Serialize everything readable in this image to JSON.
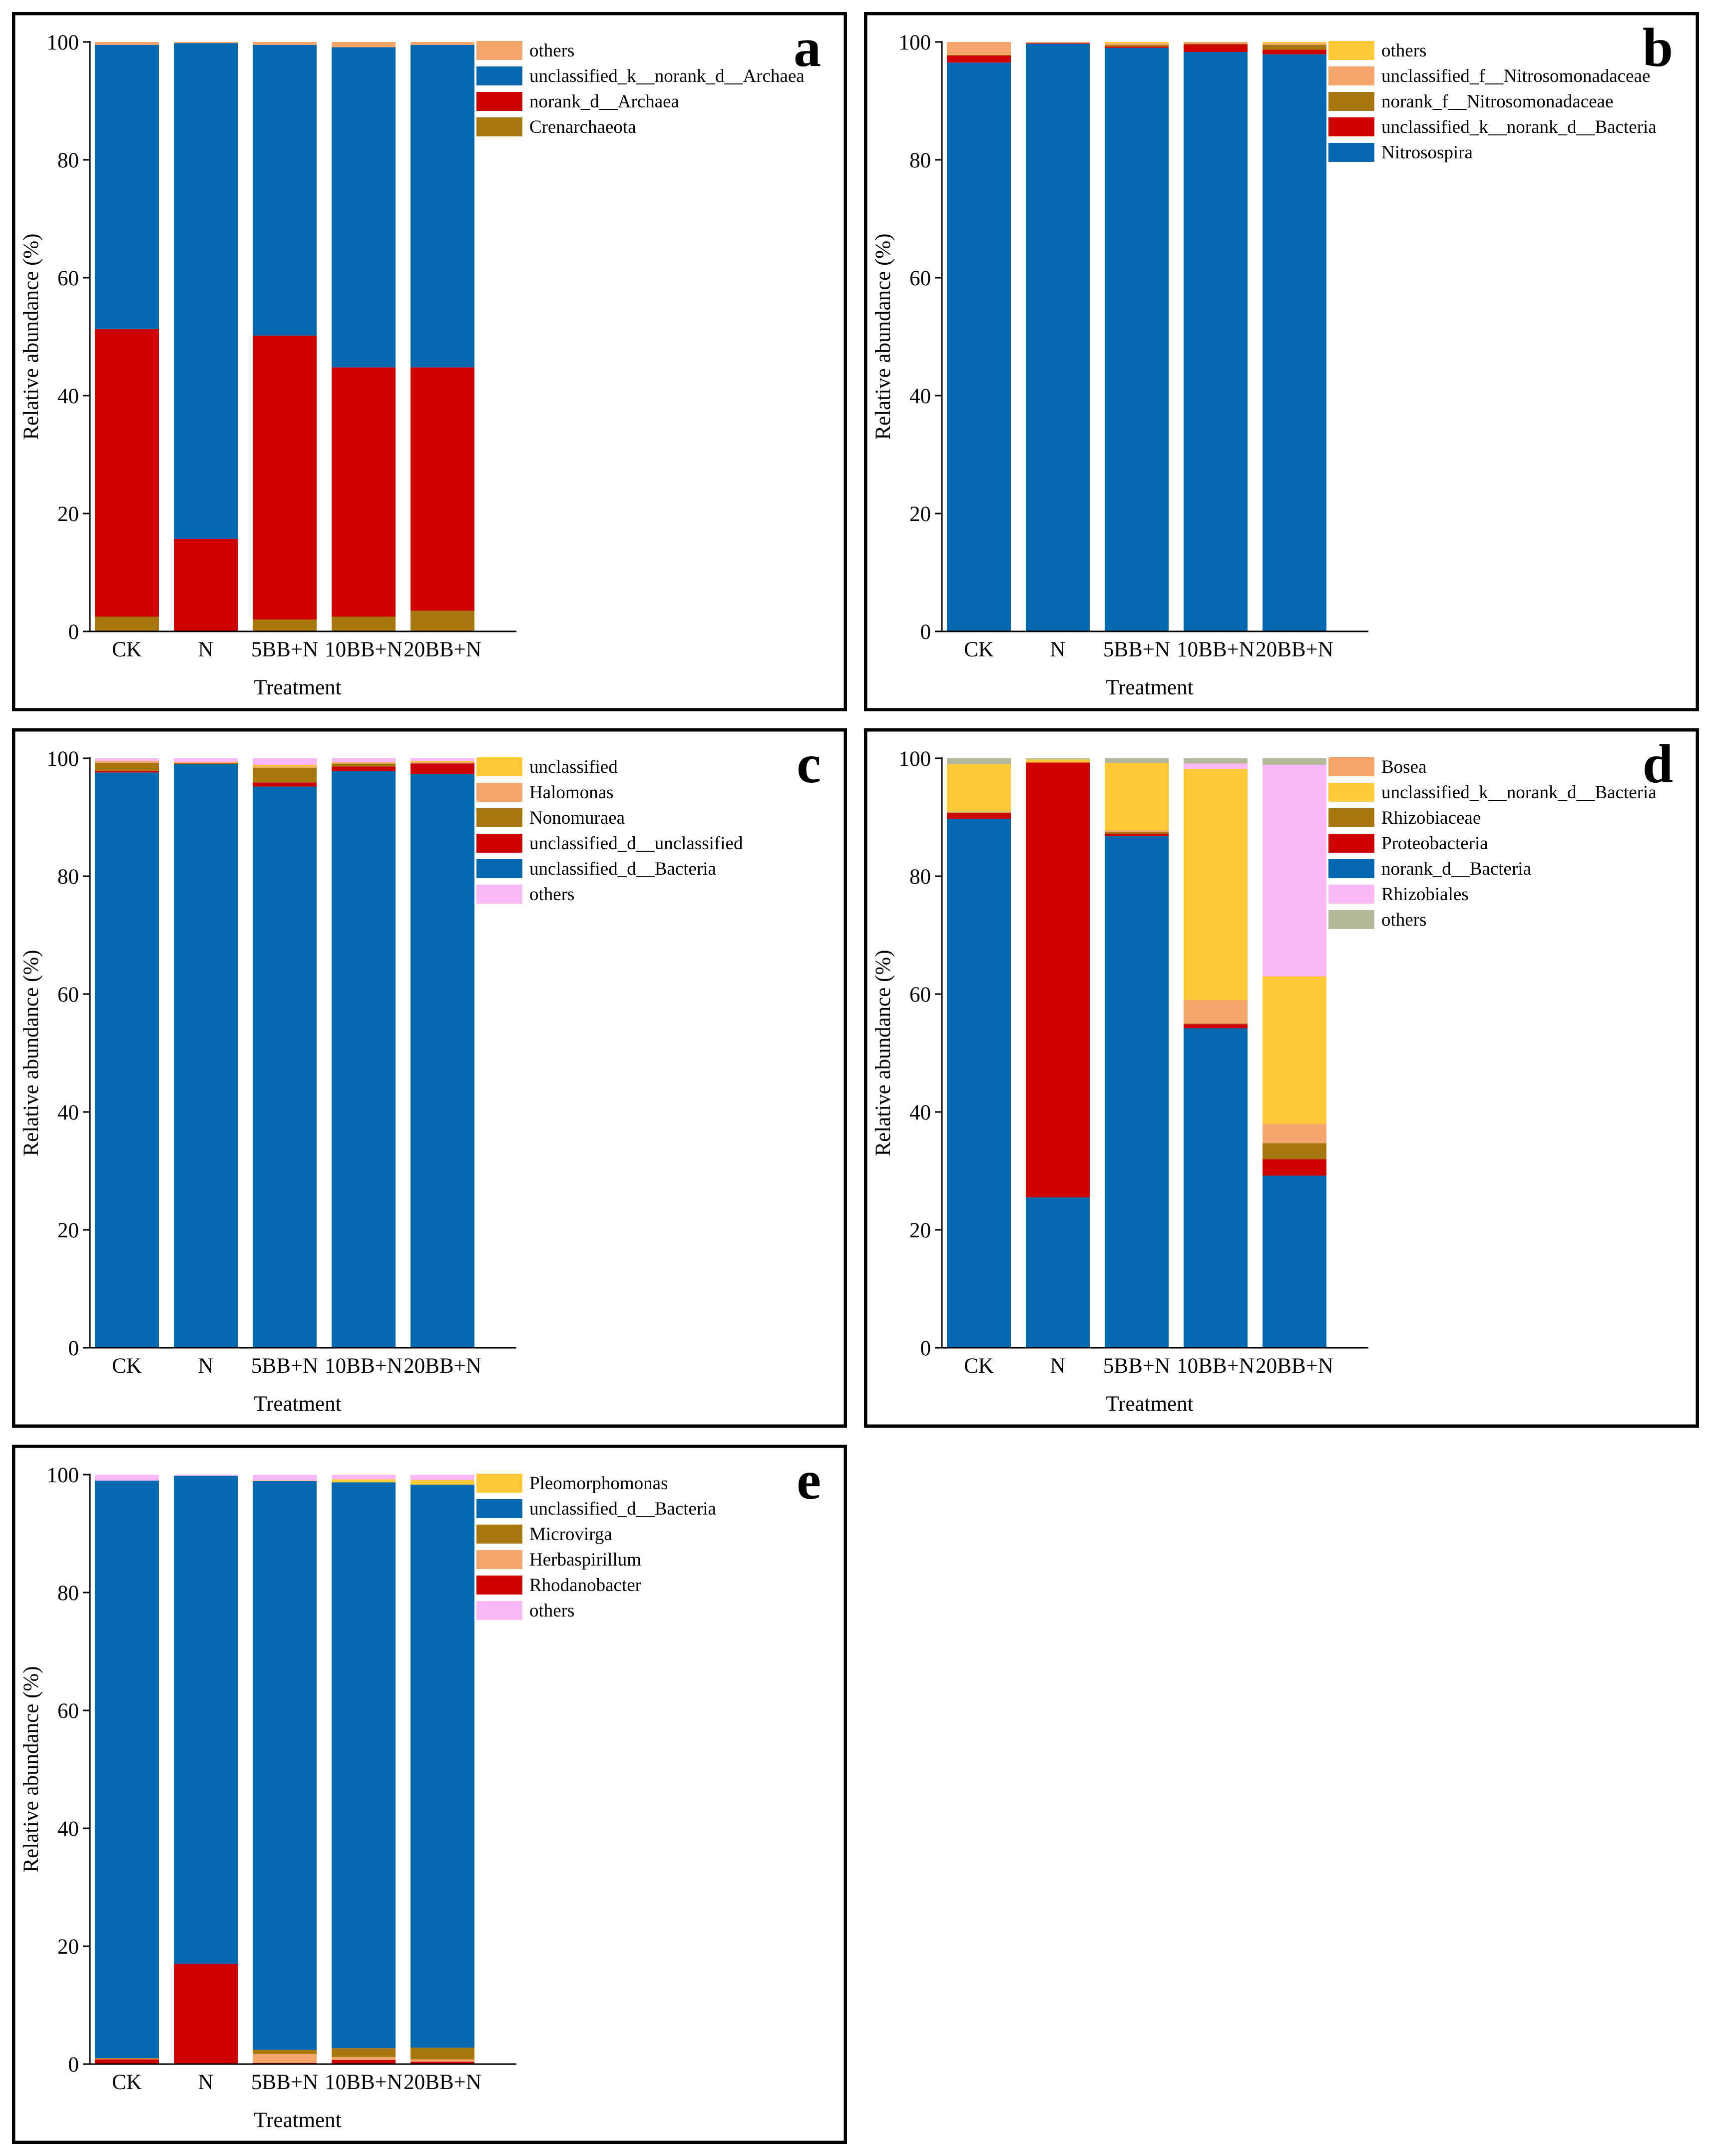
{
  "axis_common": {
    "ylabel": "Relative abundance (%)",
    "xlabel": "Treatment",
    "categories": [
      "CK",
      "N",
      "5BB+N",
      "10BB+N",
      "20BB+N"
    ],
    "yticks": [
      "0",
      "20",
      "40",
      "60",
      "80",
      "100"
    ]
  },
  "colors": {
    "orange_light": "#f4a66a",
    "blue": "#0368b0",
    "red": "#cc0000",
    "olive": "#a8780e",
    "yellow": "#ffca36",
    "pink": "#fbb8f8",
    "grey": "#b5b79a"
  },
  "chart_data": [
    {
      "type": "bar",
      "stacked": true,
      "panel_label": "a",
      "title": "",
      "xlabel": "Treatment",
      "ylabel": "Relative abundance (%)",
      "ylim": [
        0,
        100
      ],
      "categories": [
        "CK",
        "N",
        "5BB+N",
        "10BB+N",
        "20BB+N"
      ],
      "series": [
        {
          "name": "Crenarchaeota",
          "color": "#a8780e",
          "values": [
            2.5,
            0,
            2,
            2.5,
            3.5
          ]
        },
        {
          "name": "norank_d__Archaea",
          "color": "#cc0000",
          "values": [
            48.8,
            15.7,
            48.2,
            42.3,
            41.3
          ]
        },
        {
          "name": "unclassified_k__norank_d__Archaea",
          "color": "#0368b0",
          "values": [
            48.2,
            84.1,
            49.3,
            54.3,
            54.7
          ]
        },
        {
          "name": "others",
          "color": "#f4a66a",
          "values": [
            0.5,
            0.2,
            0.5,
            0.9,
            0.5
          ]
        }
      ],
      "legend_order": [
        "others",
        "unclassified_k__norank_d__Archaea",
        "norank_d__Archaea",
        "Crenarchaeota"
      ]
    },
    {
      "type": "bar",
      "stacked": true,
      "panel_label": "b",
      "title": "",
      "xlabel": "Treatment",
      "ylabel": "Relative abundance (%)",
      "ylim": [
        0,
        100
      ],
      "categories": [
        "CK",
        "N",
        "5BB+N",
        "10BB+N",
        "20BB+N"
      ],
      "series": [
        {
          "name": "Nitrosospira",
          "color": "#0368b0",
          "values": [
            96.5,
            99.7,
            99.0,
            98.3,
            97.9
          ]
        },
        {
          "name": "unclassified_k__norank_d__Bacteria",
          "color": "#cc0000",
          "values": [
            1.2,
            0.1,
            0.2,
            1.3,
            0.8
          ]
        },
        {
          "name": "norank_f__Nitrosomonadaceae",
          "color": "#a8780e",
          "values": [
            0.1,
            0,
            0.3,
            0.1,
            0.8
          ]
        },
        {
          "name": "unclassified_f__Nitrosomonadaceae",
          "color": "#f4a66a",
          "values": [
            2.2,
            0.2,
            0.3,
            0.3,
            0.3
          ]
        },
        {
          "name": "others",
          "color": "#ffca36",
          "values": [
            0.0,
            0.0,
            0.2,
            0.0,
            0.2
          ]
        }
      ],
      "legend_order": [
        "others",
        "unclassified_f__Nitrosomonadaceae",
        "norank_f__Nitrosomonadaceae",
        "unclassified_k__norank_d__Bacteria",
        "Nitrosospira"
      ]
    },
    {
      "type": "bar",
      "stacked": true,
      "panel_label": "c",
      "title": "",
      "xlabel": "Treatment",
      "ylabel": "Relative abundance (%)",
      "ylim": [
        0,
        100
      ],
      "categories": [
        "CK",
        "N",
        "5BB+N",
        "10BB+N",
        "20BB+N"
      ],
      "series": [
        {
          "name": "unclassified_d__Bacteria",
          "color": "#0368b0",
          "values": [
            97.6,
            99.0,
            95.2,
            97.8,
            97.3
          ]
        },
        {
          "name": "unclassified_d__unclassified",
          "color": "#cc0000",
          "values": [
            0.3,
            0.1,
            0.7,
            0.8,
            1.8
          ]
        },
        {
          "name": "Nonomuraea",
          "color": "#a8780e",
          "values": [
            1.3,
            0.1,
            2.5,
            0.5,
            0.1
          ]
        },
        {
          "name": "Halomonas",
          "color": "#f4a66a",
          "values": [
            0.3,
            0.1,
            0.3,
            0.2,
            0.2
          ]
        },
        {
          "name": "unclassified",
          "color": "#ffca36",
          "values": [
            0.1,
            0.1,
            0.2,
            0.1,
            0.1
          ]
        },
        {
          "name": "others",
          "color": "#fbb8f8",
          "values": [
            0.4,
            0.6,
            1.1,
            0.6,
            0.5
          ]
        }
      ],
      "legend_order": [
        "unclassified",
        "Halomonas",
        "Nonomuraea",
        "unclassified_d__unclassified",
        "unclassified_d__Bacteria",
        "others"
      ]
    },
    {
      "type": "bar",
      "stacked": true,
      "panel_label": "d",
      "title": "",
      "xlabel": "Treatment",
      "ylabel": "Relative abundance (%)",
      "ylim": [
        0,
        100
      ],
      "categories": [
        "CK",
        "N",
        "5BB+N",
        "10BB+N",
        "20BB+N"
      ],
      "series": [
        {
          "name": "norank_d__Bacteria",
          "color": "#0368b0",
          "values": [
            89.7,
            25.5,
            86.8,
            54.2,
            29.2
          ]
        },
        {
          "name": "Proteobacteria",
          "color": "#cc0000",
          "values": [
            1.0,
            73.8,
            0.4,
            0.7,
            2.8
          ]
        },
        {
          "name": "Rhizobiaceae",
          "color": "#a8780e",
          "values": [
            0.1,
            0.0,
            0.3,
            0.1,
            2.7
          ]
        },
        {
          "name": "Bosea",
          "color": "#f4a66a",
          "values": [
            0.2,
            0.0,
            0.3,
            4.0,
            3.3
          ]
        },
        {
          "name": "unclassified_k__norank_d__Bacteria",
          "color": "#ffca36",
          "values": [
            8.0,
            0.5,
            11.4,
            39.2,
            25.0
          ]
        },
        {
          "name": "Rhizobiales",
          "color": "#fbb8f8",
          "values": [
            0.0,
            0.0,
            0.0,
            0.9,
            35.9
          ]
        },
        {
          "name": "others",
          "color": "#b5b79a",
          "values": [
            1.0,
            0.2,
            0.8,
            0.9,
            1.1
          ]
        }
      ],
      "legend_order": [
        "Bosea",
        "unclassified_k__norank_d__Bacteria",
        "Rhizobiaceae",
        "Proteobacteria",
        "norank_d__Bacteria",
        "Rhizobiales",
        "others"
      ]
    },
    {
      "type": "bar",
      "stacked": true,
      "panel_label": "e",
      "title": "",
      "xlabel": "Treatment",
      "ylabel": "Relative abundance (%)",
      "ylim": [
        0,
        100
      ],
      "categories": [
        "CK",
        "N",
        "5BB+N",
        "10BB+N",
        "20BB+N"
      ],
      "series": [
        {
          "name": "Rhodanobacter",
          "color": "#cc0000",
          "values": [
            0.8,
            17.0,
            0.2,
            0.7,
            0.4
          ]
        },
        {
          "name": "Herbaspirillum",
          "color": "#f4a66a",
          "values": [
            0.1,
            0.0,
            1.5,
            0.5,
            0.4
          ]
        },
        {
          "name": "Microvirga",
          "color": "#a8780e",
          "values": [
            0.1,
            0.0,
            0.7,
            1.5,
            2.0
          ]
        },
        {
          "name": "unclassified_d__Bacteria",
          "color": "#0368b0",
          "values": [
            98.0,
            82.8,
            96.5,
            96.0,
            95.5
          ]
        },
        {
          "name": "Pleomorphomonas",
          "color": "#ffca36",
          "values": [
            0.0,
            0.0,
            0.1,
            0.5,
            0.8
          ]
        },
        {
          "name": "others",
          "color": "#fbb8f8",
          "values": [
            1.0,
            0.2,
            1.0,
            0.8,
            0.9
          ]
        }
      ],
      "legend_order": [
        "Pleomorphomonas",
        "unclassified_d__Bacteria",
        "Microvirga",
        "Herbaspirillum",
        "Rhodanobacter",
        "others"
      ]
    }
  ]
}
